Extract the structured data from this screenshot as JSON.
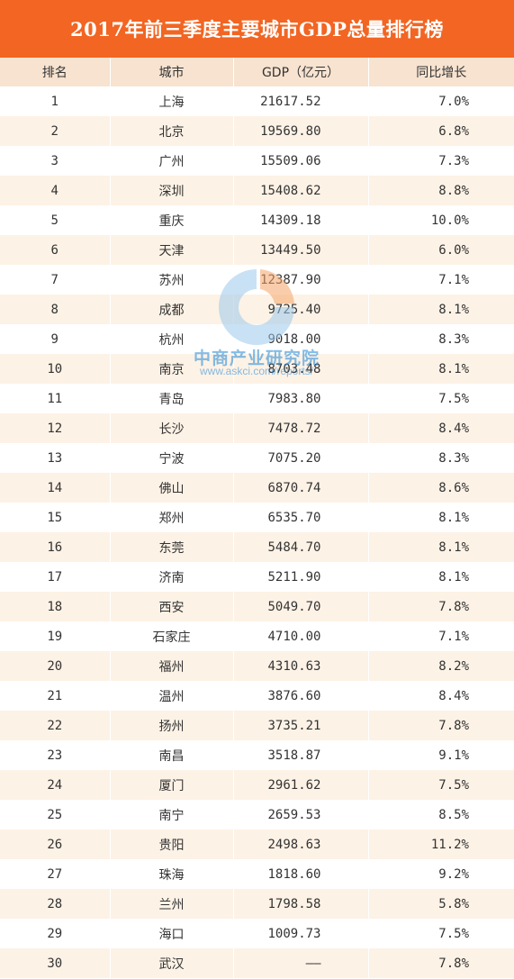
{
  "title": "2017年前三季度主要城市GDP总量排行榜",
  "headers": [
    "排名",
    "城市",
    "GDP（亿元）",
    "同比增长"
  ],
  "rows": [
    {
      "rank": "1",
      "city": "上海",
      "gdp": "21617.52",
      "growth": "7.0%"
    },
    {
      "rank": "2",
      "city": "北京",
      "gdp": "19569.80",
      "growth": "6.8%"
    },
    {
      "rank": "3",
      "city": "广州",
      "gdp": "15509.06",
      "growth": "7.3%"
    },
    {
      "rank": "4",
      "city": "深圳",
      "gdp": "15408.62",
      "growth": "8.8%"
    },
    {
      "rank": "5",
      "city": "重庆",
      "gdp": "14309.18",
      "growth": "10.0%"
    },
    {
      "rank": "6",
      "city": "天津",
      "gdp": "13449.50",
      "growth": "6.0%"
    },
    {
      "rank": "7",
      "city": "苏州",
      "gdp": "12387.90",
      "growth": "7.1%"
    },
    {
      "rank": "8",
      "city": "成都",
      "gdp": "9725.40",
      "growth": "8.1%"
    },
    {
      "rank": "9",
      "city": "杭州",
      "gdp": "9018.00",
      "growth": "8.3%"
    },
    {
      "rank": "10",
      "city": "南京",
      "gdp": "8703.48",
      "growth": "8.1%"
    },
    {
      "rank": "11",
      "city": "青岛",
      "gdp": "7983.80",
      "growth": "7.5%"
    },
    {
      "rank": "12",
      "city": "长沙",
      "gdp": "7478.72",
      "growth": "8.4%"
    },
    {
      "rank": "13",
      "city": "宁波",
      "gdp": "7075.20",
      "growth": "8.3%"
    },
    {
      "rank": "14",
      "city": "佛山",
      "gdp": "6870.74",
      "growth": "8.6%"
    },
    {
      "rank": "15",
      "city": "郑州",
      "gdp": "6535.70",
      "growth": "8.1%"
    },
    {
      "rank": "16",
      "city": "东莞",
      "gdp": "5484.70",
      "growth": "8.1%"
    },
    {
      "rank": "17",
      "city": "济南",
      "gdp": "5211.90",
      "growth": "8.1%"
    },
    {
      "rank": "18",
      "city": "西安",
      "gdp": "5049.70",
      "growth": "7.8%"
    },
    {
      "rank": "19",
      "city": "石家庄",
      "gdp": "4710.00",
      "growth": "7.1%"
    },
    {
      "rank": "20",
      "city": "福州",
      "gdp": "4310.63",
      "growth": "8.2%"
    },
    {
      "rank": "21",
      "city": "温州",
      "gdp": "3876.60",
      "growth": "8.4%"
    },
    {
      "rank": "22",
      "city": "扬州",
      "gdp": "3735.21",
      "growth": "7.8%"
    },
    {
      "rank": "23",
      "city": "南昌",
      "gdp": "3518.87",
      "growth": "9.1%"
    },
    {
      "rank": "24",
      "city": "厦门",
      "gdp": "2961.62",
      "growth": "7.5%"
    },
    {
      "rank": "25",
      "city": "南宁",
      "gdp": "2659.53",
      "growth": "8.5%"
    },
    {
      "rank": "26",
      "city": "贵阳",
      "gdp": "2498.63",
      "growth": "11.2%"
    },
    {
      "rank": "27",
      "city": "珠海",
      "gdp": "1818.60",
      "growth": "9.2%"
    },
    {
      "rank": "28",
      "city": "兰州",
      "gdp": "1798.58",
      "growth": "5.8%"
    },
    {
      "rank": "29",
      "city": "海口",
      "gdp": "1009.73",
      "growth": "7.5%"
    },
    {
      "rank": "30",
      "city": "武汉",
      "gdp": "——",
      "growth": "7.8%"
    }
  ],
  "watermark": {
    "logo_icon": "askci-logo-icon",
    "name": "中商产业研究院",
    "url": "www.askci.com/reports/",
    "color": "#1e88d8"
  },
  "colors": {
    "header_bar": "#f26522",
    "column_header_bg": "#f7e3d0",
    "stripe_bg": "#fdf2e6"
  }
}
